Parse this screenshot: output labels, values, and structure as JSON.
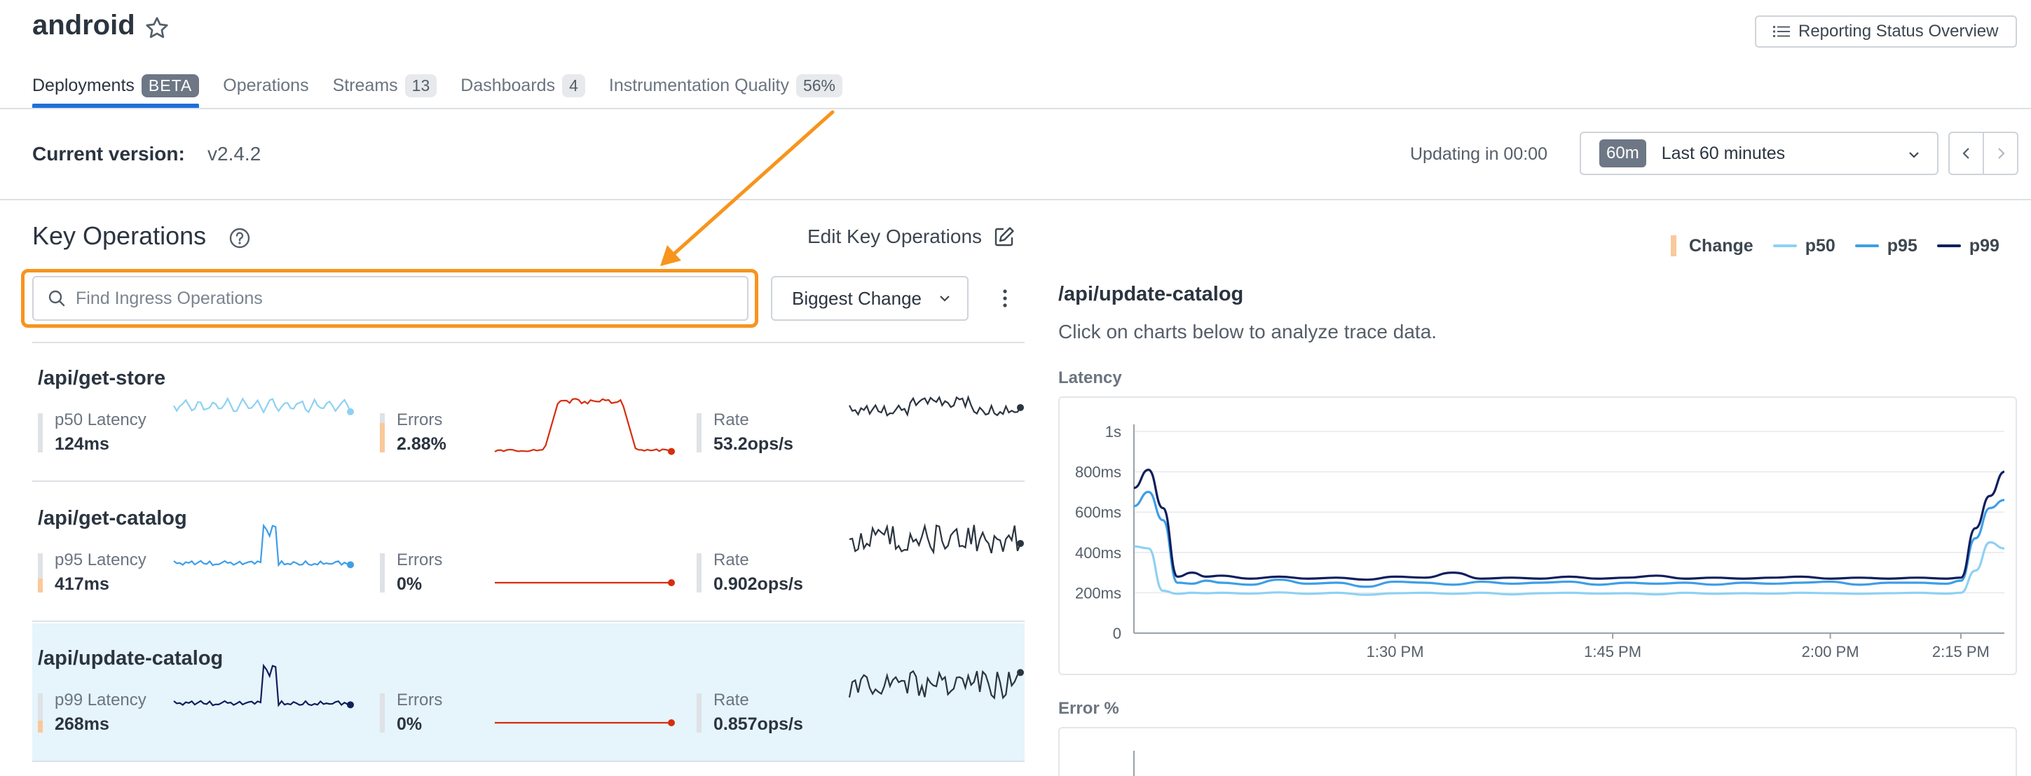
{
  "header": {
    "app_title": "android",
    "reporting_button": "Reporting Status Overview",
    "tabs": [
      {
        "label": "Deployments",
        "badge": "BETA"
      },
      {
        "label": "Operations",
        "badge": ""
      },
      {
        "label": "Streams",
        "badge": "13"
      },
      {
        "label": "Dashboards",
        "badge": "4"
      },
      {
        "label": "Instrumentation Quality",
        "badge": "56%"
      }
    ]
  },
  "version_bar": {
    "label": "Current version:",
    "value": "v2.4.2",
    "updating": "Updating in 00:00",
    "time_chip": "60m",
    "time_range": "Last 60 minutes"
  },
  "key_operations": {
    "title": "Key Operations",
    "edit_label": "Edit Key Operations",
    "search_placeholder": "Find Ingress Operations",
    "sort_label": "Biggest Change",
    "rows": [
      {
        "name": "/api/get-store",
        "latency_label": "p50 Latency",
        "latency_value": "124ms",
        "latency_change": 0,
        "errors_label": "Errors",
        "errors_value": "2.88%",
        "errors_change": 0.75,
        "rate_label": "Rate",
        "rate_value": "53.2ops/s",
        "rate_change": 0,
        "latency_color": "#8ed1f3",
        "errors_color": "#d62d0f",
        "rate_color": "#2b3440"
      },
      {
        "name": "/api/get-catalog",
        "latency_label": "p95 Latency",
        "latency_value": "417ms",
        "latency_change": 0.35,
        "errors_label": "Errors",
        "errors_value": "0%",
        "errors_change": 0,
        "rate_label": "Rate",
        "rate_value": "0.902ops/s",
        "rate_change": 0,
        "latency_color": "#3d9ee8",
        "errors_color": "#d62d0f",
        "rate_color": "#2b3440"
      },
      {
        "name": "/api/update-catalog",
        "latency_label": "p99 Latency",
        "latency_value": "268ms",
        "latency_change": 0.3,
        "errors_label": "Errors",
        "errors_value": "0%",
        "errors_change": 0,
        "rate_label": "Rate",
        "rate_value": "0.857ops/s",
        "rate_change": 0,
        "latency_color": "#0f1f5c",
        "errors_color": "#d62d0f",
        "rate_color": "#2b3440"
      }
    ]
  },
  "detail": {
    "legend": {
      "change": "Change",
      "p50": "p50",
      "p95": "p95",
      "p99": "p99"
    },
    "title": "/api/update-catalog",
    "subtitle": "Click on charts below to analyze trace data.",
    "latency_label": "Latency",
    "error_label": "Error %"
  },
  "colors": {
    "p50": "#8ed1f3",
    "p95": "#3d9ee8",
    "p99": "#0f1f5c",
    "accent": "#1e6fd9",
    "highlight": "#f7941d",
    "error": "#d62d0f"
  },
  "chart_data": {
    "type": "line",
    "title": "",
    "xlabel": "",
    "ylabel": "",
    "x_ticks": [
      "1:30 PM",
      "1:45 PM",
      "2:00 PM",
      "2:15 PM"
    ],
    "y_ticks": [
      "0",
      "200ms",
      "400ms",
      "600ms",
      "800ms",
      "1s"
    ],
    "ylim_ms": [
      0,
      1000
    ],
    "x_minutes": [
      0,
      1,
      2,
      3,
      4,
      5,
      6,
      8,
      10,
      12,
      14,
      16,
      18,
      20,
      22,
      24,
      26,
      28,
      30,
      32,
      34,
      36,
      38,
      40,
      42,
      44,
      46,
      48,
      50,
      52,
      54,
      56,
      57,
      58,
      59,
      60
    ],
    "series": [
      {
        "name": "p50",
        "values": [
          430,
          420,
          210,
          195,
          200,
          198,
          200,
          196,
          202,
          195,
          200,
          190,
          198,
          200,
          195,
          200,
          192,
          198,
          200,
          196,
          198,
          192,
          200,
          195,
          198,
          196,
          200,
          198,
          195,
          198,
          200,
          196,
          200,
          310,
          450,
          420
        ]
      },
      {
        "name": "p95",
        "values": [
          630,
          700,
          560,
          250,
          245,
          260,
          250,
          240,
          265,
          245,
          250,
          230,
          255,
          250,
          240,
          255,
          245,
          250,
          255,
          240,
          250,
          245,
          250,
          240,
          250,
          245,
          250,
          255,
          240,
          250,
          250,
          245,
          260,
          470,
          620,
          660
        ]
      },
      {
        "name": "p99",
        "values": [
          720,
          810,
          620,
          280,
          300,
          280,
          285,
          270,
          280,
          270,
          275,
          265,
          280,
          275,
          300,
          270,
          275,
          270,
          280,
          270,
          275,
          285,
          270,
          275,
          270,
          275,
          280,
          270,
          275,
          270,
          275,
          270,
          275,
          520,
          680,
          800
        ]
      }
    ]
  }
}
